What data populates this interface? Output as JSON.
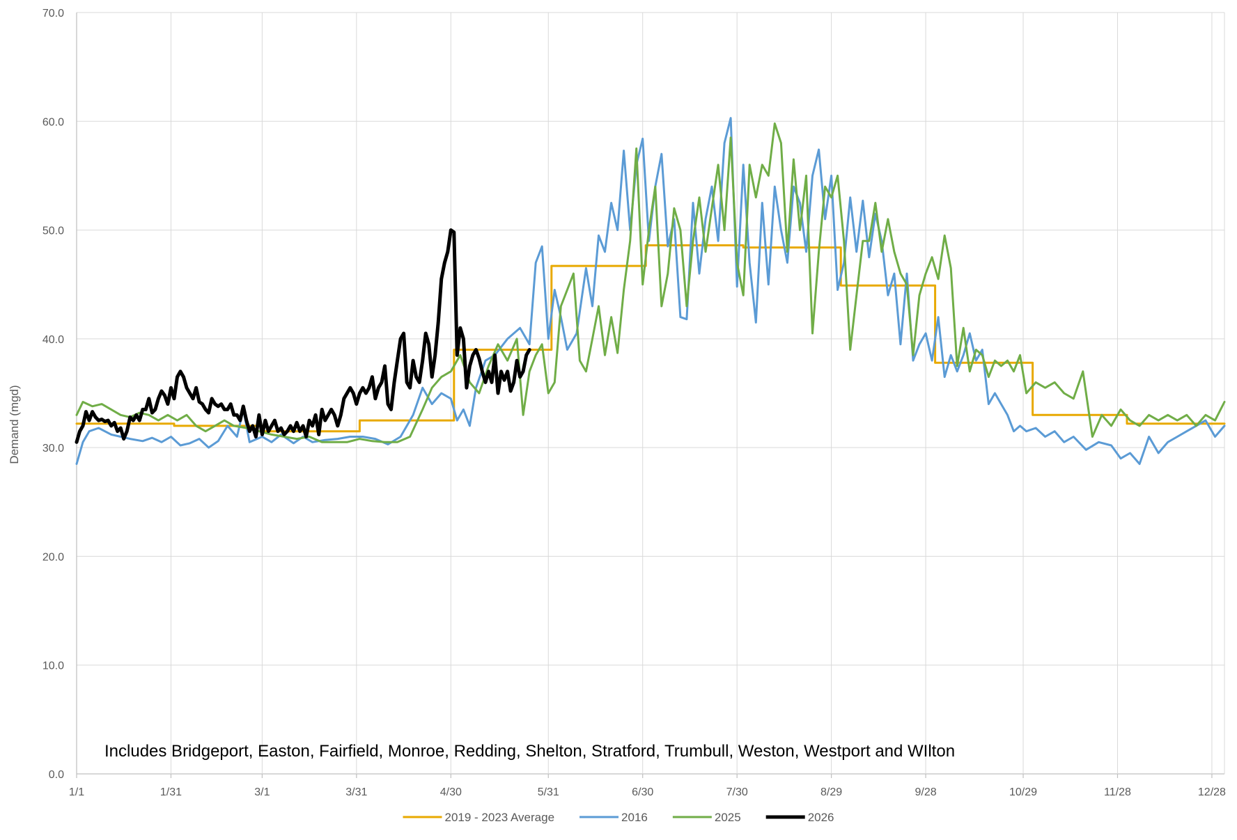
{
  "chart_data": {
    "type": "line",
    "title": "",
    "xlabel": "",
    "ylabel": "Demand (mgd)",
    "annotation": "Includes Bridgeport, Easton, Fairfield, Monroe, Redding, Shelton, Stratford, Trumbull, Weston, Westport and WIlton",
    "ylim": [
      0,
      70
    ],
    "yticks": [
      "0.0",
      "10.0",
      "20.0",
      "30.0",
      "40.0",
      "50.0",
      "60.0",
      "70.0"
    ],
    "xlim": [
      1,
      366
    ],
    "xticks": [
      {
        "label": "1/1",
        "day": 1
      },
      {
        "label": "1/31",
        "day": 31
      },
      {
        "label": "3/1",
        "day": 60
      },
      {
        "label": "3/31",
        "day": 90
      },
      {
        "label": "4/30",
        "day": 120
      },
      {
        "label": "5/31",
        "day": 151
      },
      {
        "label": "6/30",
        "day": 181
      },
      {
        "label": "7/30",
        "day": 211
      },
      {
        "label": "8/29",
        "day": 241
      },
      {
        "label": "9/28",
        "day": 271
      },
      {
        "label": "10/29",
        "day": 302
      },
      {
        "label": "11/28",
        "day": 332
      },
      {
        "label": "12/28",
        "day": 362
      }
    ],
    "grid": true,
    "legend_position": "bottom",
    "series": [
      {
        "name": "2019 - 2023 Average",
        "color": "#e8a900",
        "step": true,
        "x": [
          1,
          32,
          60,
          91,
          121,
          152,
          182,
          213,
          244,
          274,
          305,
          335,
          366
        ],
        "y": [
          32.2,
          32.0,
          31.5,
          32.5,
          39.0,
          46.7,
          48.6,
          48.4,
          44.9,
          37.8,
          33.0,
          32.2,
          32.2
        ]
      },
      {
        "name": "2016",
        "color": "#5b9bd5",
        "step": false,
        "x": [
          1,
          3,
          5,
          8,
          12,
          15,
          18,
          22,
          25,
          28,
          31,
          34,
          37,
          40,
          43,
          46,
          49,
          52,
          54,
          56,
          60,
          63,
          66,
          70,
          73,
          76,
          80,
          84,
          88,
          92,
          96,
          100,
          104,
          108,
          111,
          114,
          117,
          120,
          122,
          124,
          126,
          128,
          131,
          134,
          138,
          142,
          145,
          147,
          149,
          151,
          153,
          155,
          157,
          160,
          163,
          165,
          167,
          169,
          171,
          173,
          175,
          177,
          179,
          181,
          183,
          185,
          187,
          189,
          191,
          193,
          195,
          197,
          199,
          201,
          203,
          205,
          207,
          209,
          211,
          213,
          215,
          217,
          219,
          221,
          223,
          225,
          227,
          229,
          231,
          233,
          235,
          237,
          239,
          241,
          243,
          245,
          247,
          249,
          251,
          253,
          255,
          257,
          259,
          261,
          263,
          265,
          267,
          269,
          271,
          273,
          275,
          277,
          279,
          281,
          283,
          285,
          287,
          289,
          291,
          293,
          295,
          297,
          299,
          301,
          303,
          306,
          309,
          312,
          315,
          318,
          322,
          326,
          330,
          333,
          336,
          339,
          342,
          345,
          348,
          351,
          354,
          357,
          360,
          363,
          366
        ],
        "y": [
          28.5,
          30.5,
          31.5,
          31.8,
          31.2,
          31.0,
          30.8,
          30.6,
          30.9,
          30.5,
          31.0,
          30.2,
          30.4,
          30.8,
          30.0,
          30.6,
          32.0,
          31.0,
          33.5,
          30.5,
          31.0,
          30.5,
          31.2,
          30.4,
          31.0,
          30.5,
          30.7,
          30.8,
          31.0,
          31.0,
          30.8,
          30.3,
          31.0,
          33.0,
          35.5,
          34.0,
          35.0,
          34.5,
          32.5,
          33.5,
          32.0,
          35.5,
          38.0,
          38.5,
          40.0,
          41.0,
          39.5,
          47.0,
          48.5,
          40.0,
          44.5,
          42.0,
          39.0,
          40.5,
          46.5,
          43.0,
          49.5,
          48.0,
          52.5,
          50.0,
          57.3,
          50.0,
          56.0,
          58.4,
          49.0,
          54.0,
          57.0,
          48.5,
          51.0,
          42.0,
          41.8,
          52.5,
          46.0,
          51.0,
          54.0,
          49.0,
          58.0,
          60.3,
          44.8,
          56.0,
          47.0,
          41.5,
          52.5,
          45.0,
          54.0,
          50.0,
          47.0,
          54.0,
          52.5,
          48.0,
          55.0,
          57.4,
          51.0,
          55.0,
          44.5,
          47.0,
          53.0,
          48.0,
          52.7,
          47.5,
          51.5,
          49.0,
          44.0,
          46.0,
          39.5,
          46.0,
          38.0,
          39.5,
          40.5,
          38.0,
          42.0,
          36.5,
          38.5,
          37.0,
          38.5,
          40.5,
          38.0,
          39.0,
          34.0,
          35.0,
          34.0,
          33.0,
          31.5,
          32.0,
          31.5,
          31.8,
          31.0,
          31.5,
          30.5,
          31.0,
          29.8,
          30.5,
          30.2,
          29.0,
          29.5,
          28.5,
          31.0,
          29.5,
          30.5,
          31.0,
          31.5,
          32.0,
          32.5,
          31.0,
          32.0
        ]
      },
      {
        "name": "2025",
        "color": "#70ad47",
        "step": false,
        "x": [
          1,
          3,
          6,
          9,
          12,
          15,
          18,
          21,
          24,
          27,
          30,
          33,
          36,
          39,
          42,
          45,
          48,
          51,
          55,
          59,
          63,
          67,
          71,
          75,
          79,
          83,
          87,
          91,
          95,
          99,
          103,
          107,
          111,
          114,
          117,
          120,
          123,
          126,
          129,
          132,
          135,
          138,
          141,
          143,
          145,
          147,
          149,
          151,
          153,
          155,
          157,
          159,
          161,
          163,
          165,
          167,
          169,
          171,
          173,
          175,
          177,
          179,
          181,
          183,
          185,
          187,
          189,
          191,
          193,
          195,
          197,
          199,
          201,
          203,
          205,
          207,
          209,
          211,
          213,
          215,
          217,
          219,
          221,
          223,
          225,
          227,
          229,
          231,
          233,
          235,
          237,
          239,
          241,
          243,
          245,
          247,
          249,
          251,
          253,
          255,
          257,
          259,
          261,
          263,
          265,
          267,
          269,
          271,
          273,
          275,
          277,
          279,
          281,
          283,
          285,
          287,
          289,
          291,
          293,
          295,
          297,
          299,
          301,
          303,
          306,
          309,
          312,
          315,
          318,
          321,
          324,
          327,
          330,
          333,
          336,
          339,
          342,
          345,
          348,
          351,
          354,
          357,
          360,
          363,
          366
        ],
        "y": [
          33.0,
          34.2,
          33.8,
          34.0,
          33.5,
          33.0,
          32.8,
          33.2,
          33.0,
          32.5,
          33.0,
          32.5,
          33.0,
          32.0,
          31.5,
          32.0,
          32.5,
          32.0,
          31.8,
          31.5,
          31.2,
          31.0,
          30.8,
          31.0,
          30.5,
          30.5,
          30.5,
          30.8,
          30.6,
          30.5,
          30.5,
          31.0,
          33.5,
          35.5,
          36.5,
          37.0,
          38.5,
          36.0,
          35.0,
          37.5,
          39.5,
          38.0,
          40.0,
          33.0,
          37.0,
          38.5,
          39.5,
          35.0,
          36.0,
          43.0,
          44.5,
          46.0,
          38.0,
          37.0,
          40.0,
          43.0,
          38.5,
          42.0,
          38.7,
          44.5,
          49.0,
          57.5,
          45.0,
          50.0,
          54.0,
          43.0,
          46.0,
          52.0,
          50.0,
          43.0,
          49.0,
          53.0,
          48.0,
          52.0,
          56.0,
          50.0,
          58.5,
          47.0,
          44.0,
          56.0,
          53.0,
          56.0,
          55.0,
          59.8,
          58.0,
          48.0,
          56.5,
          50.0,
          55.0,
          40.5,
          48.0,
          54.0,
          53.0,
          55.0,
          49.0,
          39.0,
          44.0,
          49.0,
          49.0,
          52.5,
          48.0,
          51.0,
          48.0,
          46.0,
          45.0,
          38.5,
          44.0,
          46.0,
          47.5,
          45.5,
          49.5,
          46.5,
          37.5,
          41.0,
          37.0,
          39.0,
          38.5,
          36.5,
          38.0,
          37.5,
          38.0,
          37.0,
          38.5,
          35.0,
          36.0,
          35.5,
          36.0,
          35.0,
          34.5,
          37.0,
          31.0,
          33.0,
          32.0,
          33.5,
          32.5,
          32.0,
          33.0,
          32.5,
          33.0,
          32.5,
          33.0,
          32.0,
          33.0,
          32.5,
          34.2
        ]
      },
      {
        "name": "2026",
        "color": "#000000",
        "step": false,
        "x": [
          1,
          2,
          3,
          4,
          5,
          6,
          7,
          8,
          9,
          10,
          11,
          12,
          13,
          14,
          15,
          16,
          17,
          18,
          19,
          20,
          21,
          22,
          23,
          24,
          25,
          26,
          27,
          28,
          29,
          30,
          31,
          32,
          33,
          34,
          35,
          36,
          37,
          38,
          39,
          40,
          41,
          42,
          43,
          44,
          45,
          46,
          47,
          48,
          49,
          50,
          51,
          52,
          53,
          54,
          55,
          56,
          57,
          58,
          59,
          60,
          61,
          62,
          63,
          64,
          65,
          66,
          67,
          68,
          69,
          70,
          71,
          72,
          73,
          74,
          75,
          76,
          77,
          78,
          79,
          80,
          81,
          82,
          83,
          84,
          85,
          86,
          87,
          88,
          89,
          90,
          91,
          92,
          93,
          94,
          95,
          96,
          97,
          98,
          99,
          100,
          101,
          102,
          103,
          104,
          105,
          106,
          107,
          108,
          109,
          110,
          111,
          112,
          113,
          114,
          115,
          116,
          117,
          118,
          119,
          120,
          121,
          122,
          123,
          124,
          125,
          126,
          127,
          128,
          129,
          130,
          131,
          132,
          133,
          134,
          135,
          136,
          137,
          138,
          139,
          140,
          141,
          142,
          143,
          144,
          145
        ],
        "y": [
          30.5,
          31.5,
          32.0,
          33.3,
          32.5,
          33.3,
          32.8,
          32.5,
          32.6,
          32.4,
          32.5,
          32.0,
          32.3,
          31.5,
          31.8,
          30.8,
          31.5,
          32.8,
          32.5,
          33.0,
          32.5,
          33.5,
          33.5,
          34.5,
          33.2,
          33.5,
          34.5,
          35.2,
          34.8,
          34.0,
          35.5,
          34.5,
          36.5,
          37.0,
          36.5,
          35.5,
          35.0,
          34.5,
          35.5,
          34.2,
          34.0,
          33.5,
          33.2,
          34.5,
          34.0,
          33.8,
          34.0,
          33.5,
          33.5,
          34.0,
          33.0,
          33.0,
          32.5,
          33.8,
          32.5,
          31.5,
          32.0,
          31.0,
          33.0,
          31.2,
          32.5,
          31.5,
          32.0,
          32.5,
          31.5,
          31.8,
          31.2,
          31.5,
          32.0,
          31.5,
          32.3,
          31.5,
          32.0,
          31.0,
          32.5,
          32.0,
          33.0,
          31.2,
          33.5,
          32.5,
          33.0,
          33.5,
          33.0,
          32.0,
          33.0,
          34.5,
          35.0,
          35.5,
          35.0,
          34.0,
          35.0,
          35.5,
          35.0,
          35.5,
          36.5,
          34.5,
          35.5,
          36.0,
          37.5,
          34.0,
          33.5,
          36.0,
          38.0,
          40.0,
          40.5,
          36.0,
          35.5,
          38.0,
          36.5,
          36.0,
          38.0,
          40.5,
          39.5,
          36.5,
          38.5,
          41.5,
          45.5,
          47.0,
          48.0,
          50.0,
          49.8,
          38.5,
          41.0,
          40.0,
          35.5,
          37.5,
          38.5,
          39.0,
          38.2,
          37.0,
          36.0,
          37.0,
          36.0,
          38.5,
          35.0,
          37.0,
          36.2,
          37.0,
          35.2,
          36.0,
          38.0,
          36.5,
          37.0,
          38.5,
          39.0
        ]
      }
    ]
  }
}
